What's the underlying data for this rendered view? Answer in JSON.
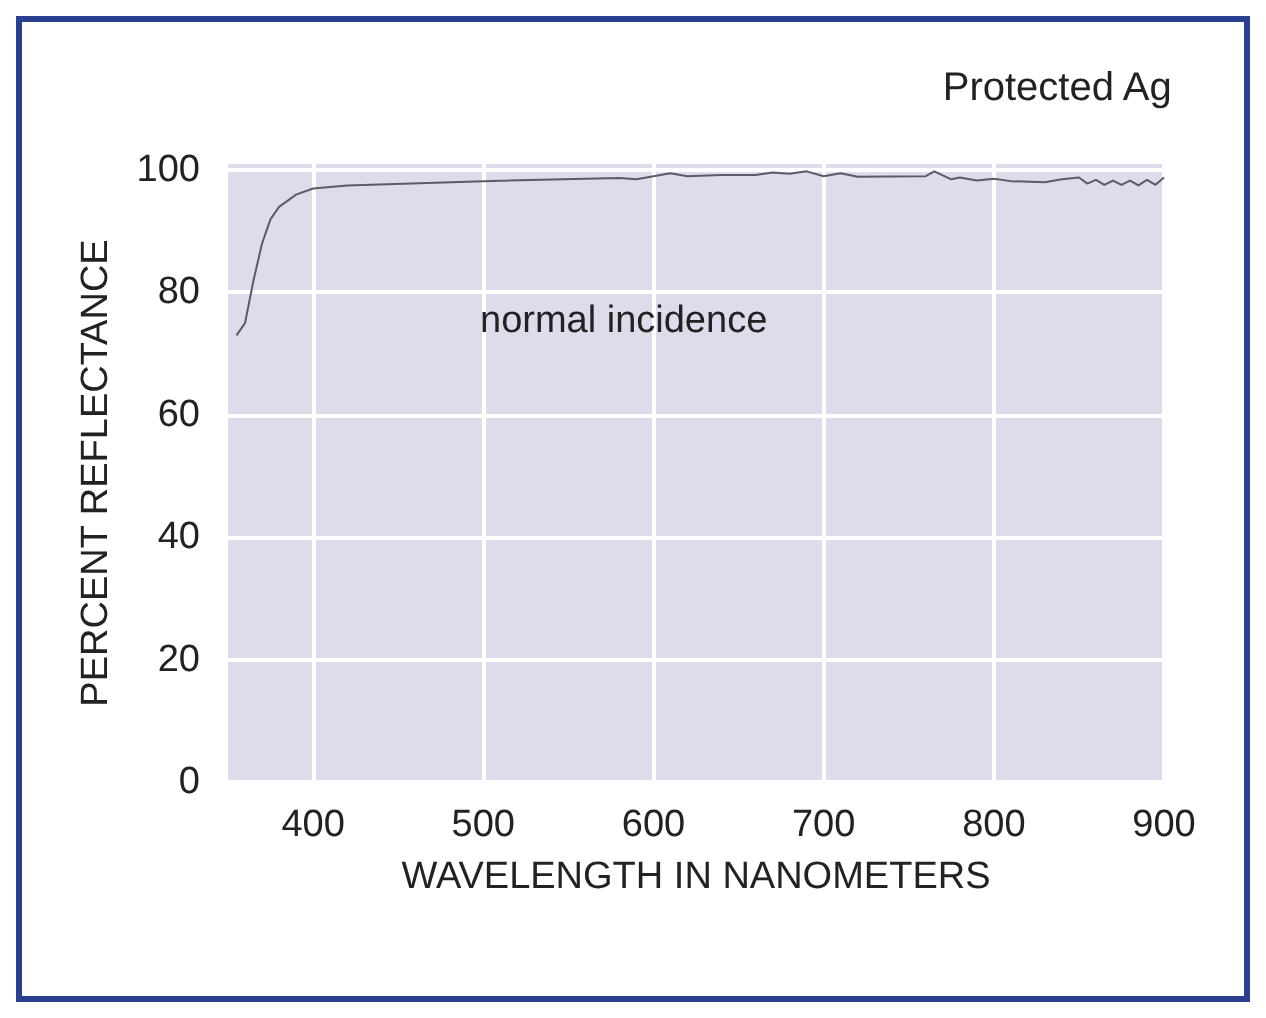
{
  "chart_data": {
    "type": "line",
    "title": "Protected Ag",
    "xlabel": "WAVELENGTH IN NANOMETERS",
    "ylabel": "PERCENT REFLECTANCE",
    "annotations": [
      "normal incidence"
    ],
    "series": [
      {
        "color": "#5a5a6a",
        "x": [
          355,
          360,
          365,
          370,
          375,
          380,
          390,
          400,
          420,
          500,
          580,
          590,
          600,
          610,
          620,
          640,
          660,
          670,
          680,
          690,
          700,
          710,
          720,
          760,
          765,
          775,
          780,
          790,
          800,
          810,
          830,
          840,
          850,
          855,
          860,
          865,
          870,
          875,
          880,
          885,
          890,
          895,
          900
        ],
        "values": [
          73,
          75,
          82,
          88,
          92,
          94,
          96,
          97,
          97.5,
          98.2,
          98.7,
          98.5,
          99,
          99.5,
          99,
          99.2,
          99.2,
          99.6,
          99.4,
          99.8,
          99,
          99.5,
          98.9,
          99,
          99.8,
          98.5,
          98.8,
          98.3,
          98.6,
          98.2,
          98,
          98.5,
          98.8,
          97.8,
          98.4,
          97.6,
          98.3,
          97.6,
          98.3,
          97.5,
          98.4,
          97.6,
          98.8
        ]
      }
    ],
    "xlim": [
      350,
      900
    ],
    "xticks": [
      400,
      500,
      600,
      700,
      800,
      900
    ],
    "ylim": [
      0,
      101
    ],
    "yticks": [
      0,
      20,
      40,
      60,
      80,
      100
    ],
    "grid": true,
    "marker": "none",
    "line_style": "solid"
  }
}
